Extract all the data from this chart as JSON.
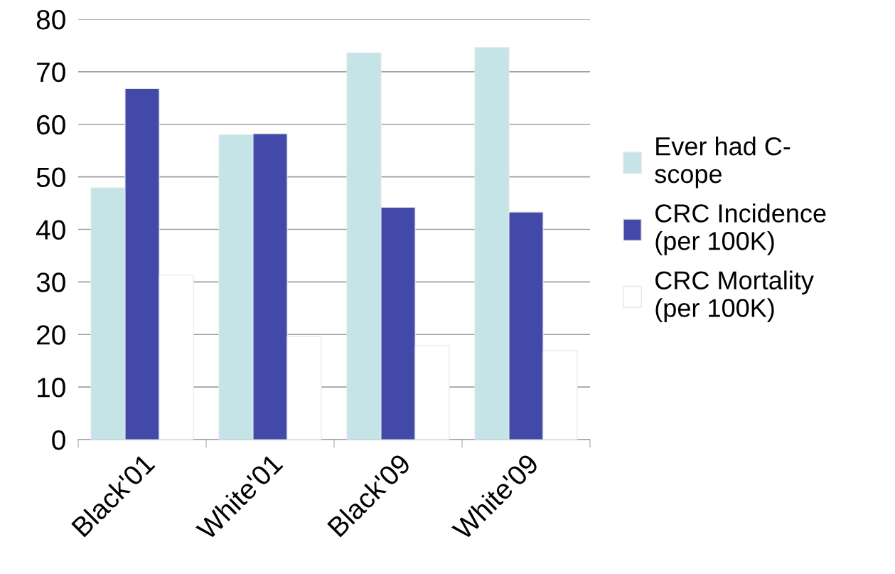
{
  "chart_data": {
    "type": "bar",
    "categories": [
      "Black'01",
      "White'01",
      "Black'09",
      "White'09"
    ],
    "series": [
      {
        "name": "Ever had C-\nscope",
        "color": "#c5e4e8",
        "values": [
          47.9,
          58.0,
          73.6,
          74.6
        ]
      },
      {
        "name": "CRC Incidence\n(per 100K)",
        "color": "#4349a8",
        "values": [
          66.8,
          58.2,
          44.2,
          43.3
        ]
      },
      {
        "name": "CRC Mortality\n(per 100K)",
        "color": "#ffffff",
        "values": [
          31.3,
          19.6,
          17.9,
          16.9
        ]
      }
    ],
    "ylim": [
      0,
      80
    ],
    "yticks": [
      0,
      10,
      20,
      30,
      40,
      50,
      60,
      70,
      80
    ],
    "grid": "y",
    "legend": "right"
  }
}
